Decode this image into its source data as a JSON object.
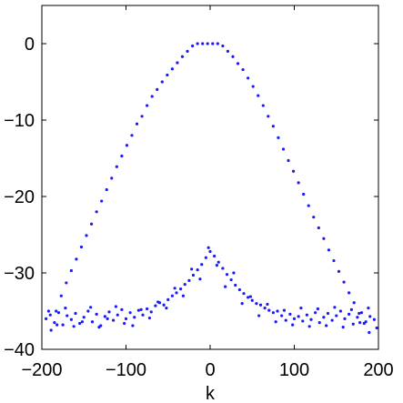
{
  "chart_data": {
    "type": "scatter",
    "title": "",
    "xlabel": "k",
    "ylabel": "",
    "xlim": [
      -200,
      200
    ],
    "ylim": [
      -40,
      5
    ],
    "grid": false,
    "legend": "none",
    "marker_color": "#1a1aff",
    "x_ticks": [
      -200,
      -100,
      0,
      100,
      200
    ],
    "x_tick_labels": [
      "−200",
      "−100",
      "0",
      "100",
      "200"
    ],
    "y_ticks": [
      0,
      -10,
      -20,
      -30,
      -40
    ],
    "y_tick_labels": [
      "0",
      "−10",
      "−20",
      "−30",
      "−40"
    ],
    "series": [
      {
        "x": [
          -189,
          -183,
          -177,
          -171,
          -165,
          -159,
          -153,
          -147,
          -141,
          -135,
          -129,
          -123,
          -117,
          -111,
          -105,
          -99,
          -93,
          -87,
          -81,
          -75,
          -69,
          -63,
          -57,
          -51,
          -45,
          -39,
          -33,
          -27,
          -21,
          -15,
          -9,
          -3,
          3,
          9,
          15,
          21,
          27,
          33,
          39,
          45,
          51,
          57,
          63,
          69,
          75,
          81,
          87,
          93,
          99,
          105,
          111,
          117,
          123,
          129,
          135,
          141,
          147,
          153,
          159,
          165,
          171,
          177,
          183,
          189
        ],
        "y": [
          -37.5,
          -35.0,
          -33.0,
          -31.3,
          -29.7,
          -28.2,
          -26.6,
          -25.1,
          -23.6,
          -22.0,
          -20.6,
          -19.1,
          -17.6,
          -16.1,
          -14.7,
          -13.3,
          -12.0,
          -10.5,
          -9.5,
          -8.1,
          -6.9,
          -6.0,
          -5.0,
          -4.1,
          -3.3,
          -2.5,
          -1.7,
          -1.0,
          -0.3,
          0.0,
          0.0,
          0.0,
          0.0,
          0.0,
          -0.3,
          -1.0,
          -1.7,
          -2.6,
          -3.4,
          -4.5,
          -5.6,
          -6.8,
          -8.1,
          -9.5,
          -10.8,
          -12.3,
          -13.8,
          -15.3,
          -16.7,
          -18.2,
          -19.7,
          -21.2,
          -22.7,
          -24.1,
          -25.5,
          -27.0,
          -28.4,
          -29.8,
          -31.2,
          -32.6,
          -33.9,
          -35.3,
          -36.6,
          -37.8
        ]
      },
      {
        "x": [
          -195,
          -190,
          -185,
          -180,
          -175,
          -170,
          -165,
          -160,
          -155,
          -150,
          -145,
          -140,
          -135,
          -130,
          -125,
          -120,
          -115,
          -110,
          -105,
          -100,
          -95,
          -90,
          -85,
          -80,
          -75,
          -70,
          -65,
          -60,
          -55,
          -50,
          -45,
          -40,
          -35,
          -30,
          -25,
          -20,
          -15,
          -10,
          -5,
          0,
          5,
          10,
          15,
          20,
          25,
          30,
          35,
          40,
          45,
          50,
          55,
          60,
          65,
          70,
          75,
          80,
          85,
          90,
          95,
          100,
          105,
          110,
          115,
          120,
          125,
          130,
          135,
          140,
          145,
          150,
          155,
          160,
          165,
          170,
          175,
          180,
          185,
          190,
          195
        ],
        "y": [
          -36.0,
          -35.5,
          -36.5,
          -35.2,
          -36.8,
          -35.6,
          -36.1,
          -35.3,
          -36.6,
          -35.8,
          -35.0,
          -36.4,
          -35.4,
          -36.9,
          -35.7,
          -35.1,
          -36.2,
          -35.5,
          -34.8,
          -36.0,
          -35.2,
          -35.8,
          -34.9,
          -35.5,
          -34.7,
          -35.1,
          -34.3,
          -33.9,
          -34.2,
          -33.5,
          -33.0,
          -32.6,
          -32.1,
          -31.5,
          -31.0,
          -30.3,
          -29.6,
          -28.9,
          -28.0,
          -27.2,
          -27.8,
          -28.6,
          -29.4,
          -30.2,
          -30.9,
          -31.6,
          -32.2,
          -32.7,
          -33.2,
          -33.6,
          -34.0,
          -34.2,
          -34.6,
          -34.9,
          -35.2,
          -35.0,
          -35.6,
          -36.2,
          -35.4,
          -36.0,
          -35.7,
          -36.3,
          -35.5,
          -36.1,
          -35.2,
          -36.5,
          -35.8,
          -35.3,
          -36.2,
          -35.6,
          -35.0,
          -36.0,
          -35.4,
          -36.7,
          -35.8,
          -35.2,
          -36.4,
          -35.7,
          -36.1
        ]
      },
      {
        "x": [
          -192,
          -182,
          -172,
          -162,
          -152,
          -142,
          -132,
          -122,
          -112,
          -102,
          -92,
          -82,
          -72,
          -62,
          -52,
          -42,
          -32,
          -22,
          -12,
          -2,
          8,
          18,
          28,
          38,
          48,
          58,
          68,
          78,
          88,
          98,
          108,
          118,
          128,
          138,
          148,
          158,
          168,
          178,
          188,
          198
        ],
        "y": [
          -35.0,
          -36.8,
          -34.6,
          -37.0,
          -36.4,
          -34.5,
          -37.1,
          -36.0,
          -34.4,
          -36.6,
          -36.9,
          -34.8,
          -35.9,
          -33.8,
          -34.6,
          -32.0,
          -33.0,
          -29.5,
          -30.8,
          -26.7,
          -29.0,
          -31.8,
          -30.0,
          -34.0,
          -33.1,
          -35.6,
          -34.1,
          -36.4,
          -34.9,
          -36.8,
          -34.6,
          -37.0,
          -34.7,
          -36.9,
          -34.5,
          -37.1,
          -34.8,
          -36.5,
          -34.6,
          -37.2
        ]
      }
    ]
  }
}
